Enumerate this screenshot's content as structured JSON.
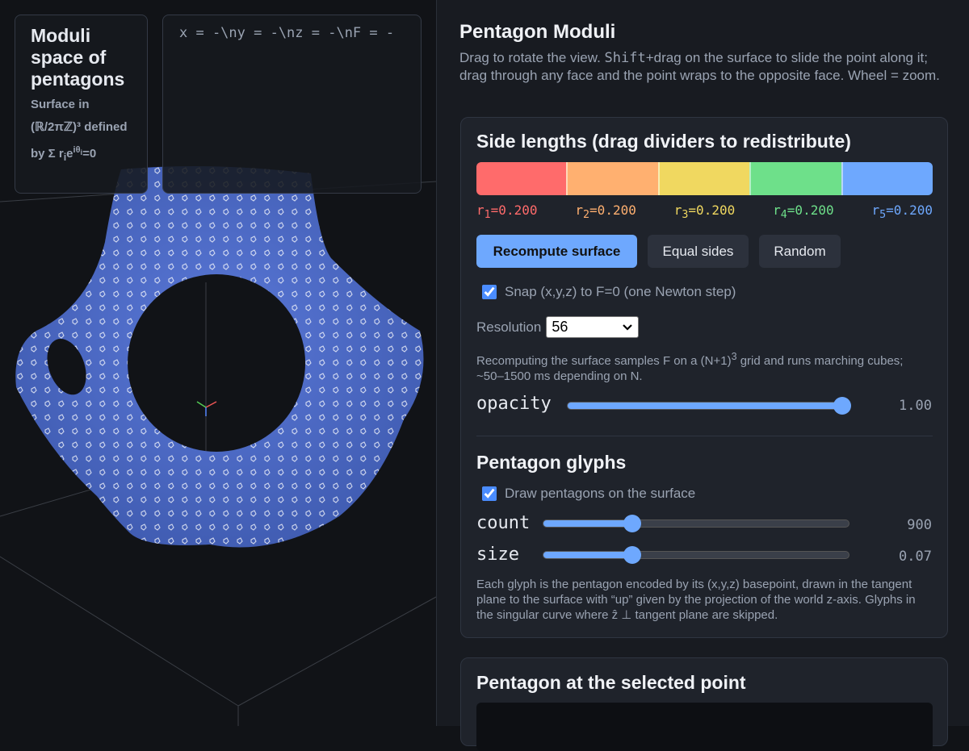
{
  "overlay": {
    "title": "Moduli space of pentagons",
    "subtitle": [
      "Surface in (ℝ/2πℤ)³ defined by Σ r",
      "i",
      "e",
      "iθ",
      "i",
      "=0"
    ]
  },
  "readout": "x = -\\ny = -\\nz = -\\nF = -",
  "panel": {
    "title": "Pentagon Moduli",
    "description": [
      "Drag to rotate the view. ",
      "Shift",
      "+drag on the surface to slide the point along it; drag through any face and the point wraps to the opposite face. Wheel = zoom."
    ]
  },
  "side_lengths": {
    "title": "Side lengths (drag dividers to redistribute)",
    "sides": [
      {
        "symbol": "r",
        "index": "1",
        "text": "=0.200",
        "color": "#ff6b6b"
      },
      {
        "symbol": "r",
        "index": "2",
        "text": "=0.200",
        "color": "#ffb070"
      },
      {
        "symbol": "r",
        "index": "3",
        "text": "=0.200",
        "color": "#f0d860"
      },
      {
        "symbol": "r",
        "index": "4",
        "text": "=0.200",
        "color": "#6ee08a"
      },
      {
        "symbol": "r",
        "index": "5",
        "text": "=0.200",
        "color": "#6ea8fe"
      }
    ],
    "buttons": [
      "Recompute surface",
      "Equal sides",
      "Random"
    ],
    "snap": {
      "label": "Snap (x,y,z) to F=0 (one Newton step)",
      "checked": true
    },
    "resolution": {
      "label": "Resolution",
      "value": "56"
    },
    "note": [
      "Recomputing the surface samples F on a (N+1)",
      "3",
      " grid and runs marching cubes; ~50–1500 ms depending on N."
    ],
    "opacity": {
      "label": "opacity",
      "value": "1.00"
    }
  },
  "glyphs": {
    "title": "Pentagon glyphs",
    "draw": {
      "label": "Draw pentagons on the surface",
      "checked": true
    },
    "count": {
      "label": "count",
      "value": "900"
    },
    "size": {
      "label": "size",
      "value": "0.07"
    },
    "note": "Each glyph is the pentagon encoded by its (x,y,z) basepoint, drawn in the tangent plane to the surface with “up” given by the projection of the world z-axis. Glyphs in the singular curve where ẑ ⊥ tangent plane are skipped."
  },
  "selected": {
    "title": "Pentagon at the selected point"
  }
}
